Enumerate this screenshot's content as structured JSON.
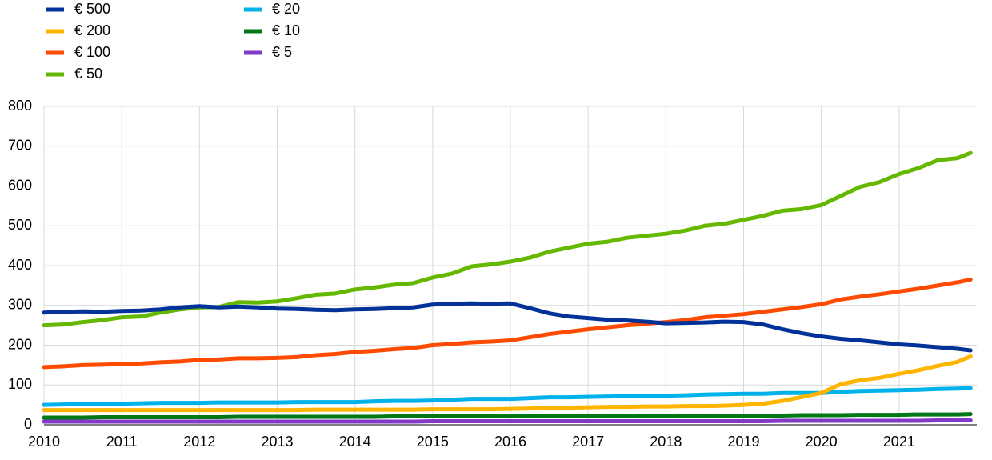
{
  "chart_data": {
    "type": "line",
    "x": [
      2010,
      2010.25,
      2010.5,
      2010.75,
      2011,
      2011.25,
      2011.5,
      2011.75,
      2012,
      2012.25,
      2012.5,
      2012.75,
      2013,
      2013.25,
      2013.5,
      2013.75,
      2014,
      2014.25,
      2014.5,
      2014.75,
      2015,
      2015.25,
      2015.5,
      2015.75,
      2016,
      2016.25,
      2016.5,
      2016.75,
      2017,
      2017.25,
      2017.5,
      2017.75,
      2018,
      2018.25,
      2018.5,
      2018.75,
      2019,
      2019.25,
      2019.5,
      2019.75,
      2020,
      2020.25,
      2020.5,
      2020.75,
      2021,
      2021.25,
      2021.5,
      2021.75,
      2021.92
    ],
    "series": [
      {
        "name": "€ 500",
        "color": "#003299",
        "values": [
          282,
          284,
          285,
          284,
          286,
          287,
          290,
          295,
          298,
          295,
          297,
          295,
          292,
          291,
          289,
          288,
          290,
          291,
          293,
          295,
          302,
          304,
          305,
          304,
          305,
          293,
          280,
          272,
          268,
          264,
          262,
          259,
          255,
          256,
          257,
          259,
          258,
          252,
          240,
          230,
          222,
          216,
          212,
          207,
          202,
          199,
          195,
          191,
          187
        ]
      },
      {
        "name": "€ 200",
        "color": "#ffb400",
        "values": [
          37,
          37,
          37,
          37,
          37,
          37,
          37,
          37,
          37,
          37,
          37,
          37,
          37,
          37,
          38,
          38,
          38,
          38,
          38,
          38,
          39,
          39,
          39,
          39,
          40,
          41,
          42,
          43,
          44,
          45,
          45,
          46,
          46,
          47,
          47,
          48,
          50,
          53,
          60,
          70,
          80,
          102,
          112,
          118,
          128,
          137,
          148,
          158,
          172
        ]
      },
      {
        "name": "€ 100",
        "color": "#ff4b00",
        "values": [
          145,
          147,
          150,
          151,
          153,
          154,
          157,
          159,
          163,
          164,
          167,
          167,
          168,
          170,
          175,
          178,
          183,
          186,
          190,
          193,
          200,
          203,
          207,
          209,
          212,
          220,
          228,
          234,
          240,
          245,
          250,
          254,
          258,
          263,
          270,
          274,
          278,
          284,
          290,
          296,
          303,
          315,
          322,
          328,
          335,
          342,
          350,
          358,
          365
        ]
      },
      {
        "name": "€ 50",
        "color": "#65b800",
        "values": [
          250,
          252,
          258,
          263,
          270,
          272,
          282,
          290,
          295,
          296,
          308,
          307,
          310,
          318,
          327,
          330,
          340,
          345,
          352,
          356,
          370,
          380,
          398,
          403,
          410,
          420,
          435,
          445,
          455,
          460,
          470,
          475,
          480,
          488,
          500,
          505,
          515,
          525,
          538,
          542,
          552,
          575,
          598,
          610,
          630,
          645,
          665,
          670,
          683
        ]
      },
      {
        "name": "€ 20",
        "color": "#00b1ea",
        "values": [
          50,
          51,
          52,
          53,
          53,
          54,
          55,
          55,
          55,
          56,
          56,
          56,
          56,
          57,
          57,
          57,
          57,
          59,
          60,
          60,
          61,
          63,
          65,
          65,
          65,
          67,
          69,
          69,
          70,
          71,
          72,
          73,
          73,
          74,
          76,
          77,
          78,
          78,
          80,
          80,
          80,
          83,
          85,
          86,
          87,
          88,
          90,
          91,
          92
        ]
      },
      {
        "name": "€ 10",
        "color": "#007816",
        "values": [
          18,
          18,
          18,
          19,
          19,
          19,
          19,
          19,
          19,
          19,
          20,
          20,
          20,
          20,
          20,
          20,
          20,
          20,
          21,
          21,
          21,
          21,
          21,
          21,
          21,
          21,
          21,
          22,
          22,
          22,
          22,
          22,
          22,
          22,
          23,
          23,
          23,
          23,
          23,
          24,
          24,
          24,
          25,
          25,
          25,
          26,
          26,
          26,
          27
        ]
      },
      {
        "name": "€ 5",
        "color": "#8139c6",
        "values": [
          8,
          8,
          8,
          8,
          8,
          8,
          8,
          8,
          8,
          8,
          8,
          8,
          8,
          8,
          8,
          8,
          8,
          8,
          8,
          8,
          9,
          9,
          9,
          9,
          9,
          9,
          9,
          9,
          9,
          9,
          9,
          9,
          9,
          9,
          9,
          9,
          9,
          9,
          10,
          10,
          10,
          10,
          10,
          10,
          10,
          10,
          11,
          11,
          11
        ]
      }
    ],
    "xlim": [
      2010,
      2022
    ],
    "xticks": [
      2010,
      2011,
      2012,
      2013,
      2014,
      2015,
      2016,
      2017,
      2018,
      2019,
      2020,
      2021
    ],
    "ylim": [
      0,
      800
    ],
    "yticks": [
      0,
      100,
      200,
      300,
      400,
      500,
      600,
      700,
      800
    ],
    "grid": true
  }
}
